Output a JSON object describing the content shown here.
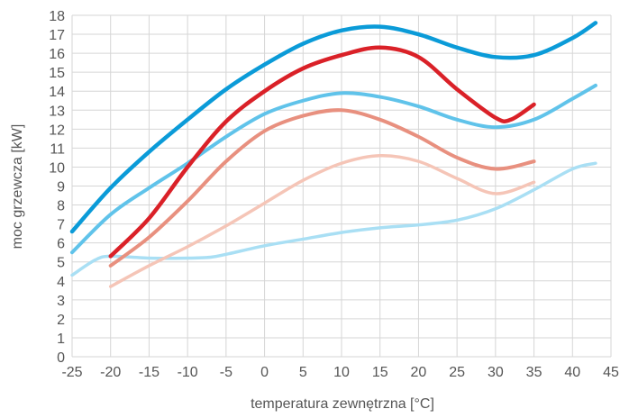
{
  "chart_data": {
    "type": "line",
    "xlabel": "temperatura zewnętrzna [°C]",
    "ylabel": "moc grzewcza [kW]",
    "xlim": [
      -25,
      45
    ],
    "ylim": [
      0,
      18
    ],
    "x_ticks": [
      "-25",
      "-20",
      "-15",
      "-10",
      "-5",
      "0",
      "5",
      "10",
      "15",
      "20",
      "25",
      "30",
      "35",
      "40",
      "45"
    ],
    "y_ticks": [
      "0",
      "1",
      "2",
      "3",
      "4",
      "5",
      "6",
      "7",
      "8",
      "9",
      "10",
      "11",
      "12",
      "13",
      "14",
      "15",
      "16",
      "17",
      "18"
    ],
    "grid": true,
    "series": [
      {
        "color": "#0b9bd8",
        "x": [
          -25,
          -20,
          -15,
          -10,
          -5,
          0,
          5,
          10,
          15,
          20,
          25,
          30,
          35,
          40,
          43
        ],
        "y": [
          6.6,
          8.9,
          10.8,
          12.5,
          14.1,
          15.4,
          16.5,
          17.2,
          17.4,
          17.0,
          16.3,
          15.8,
          15.9,
          16.8,
          17.6
        ]
      },
      {
        "color": "#60c3ea",
        "x": [
          -25,
          -20,
          -15,
          -10,
          -5,
          0,
          5,
          10,
          15,
          20,
          25,
          30,
          35,
          40,
          43
        ],
        "y": [
          5.5,
          7.5,
          8.9,
          10.2,
          11.6,
          12.8,
          13.5,
          13.9,
          13.7,
          13.2,
          12.5,
          12.1,
          12.5,
          13.6,
          14.3
        ]
      },
      {
        "color": "#a9dff4",
        "x": [
          -25,
          -22,
          -20,
          -15,
          -10,
          -7,
          -5,
          0,
          5,
          10,
          15,
          20,
          25,
          30,
          35,
          40,
          43
        ],
        "y": [
          4.3,
          5.1,
          5.3,
          5.2,
          5.2,
          5.25,
          5.4,
          5.85,
          6.2,
          6.55,
          6.8,
          6.95,
          7.2,
          7.8,
          8.8,
          9.9,
          10.2
        ]
      },
      {
        "color": "#da2128",
        "x": [
          -20,
          -15,
          -10,
          -5,
          0,
          5,
          10,
          15,
          20,
          25,
          30,
          32,
          35
        ],
        "y": [
          5.3,
          7.3,
          10.0,
          12.4,
          14.0,
          15.2,
          15.9,
          16.3,
          15.8,
          14.1,
          12.6,
          12.5,
          13.3
        ]
      },
      {
        "color": "#e8907f",
        "x": [
          -20,
          -15,
          -10,
          -5,
          0,
          5,
          10,
          15,
          20,
          25,
          30,
          35
        ],
        "y": [
          4.8,
          6.3,
          8.2,
          10.3,
          11.9,
          12.7,
          13.0,
          12.5,
          11.6,
          10.5,
          9.9,
          10.3
        ]
      },
      {
        "color": "#f5c5b7",
        "x": [
          -20,
          -15,
          -10,
          -5,
          0,
          5,
          10,
          15,
          20,
          25,
          30,
          35
        ],
        "y": [
          3.7,
          4.8,
          5.8,
          6.9,
          8.1,
          9.3,
          10.2,
          10.6,
          10.3,
          9.4,
          8.6,
          9.2
        ]
      }
    ]
  }
}
